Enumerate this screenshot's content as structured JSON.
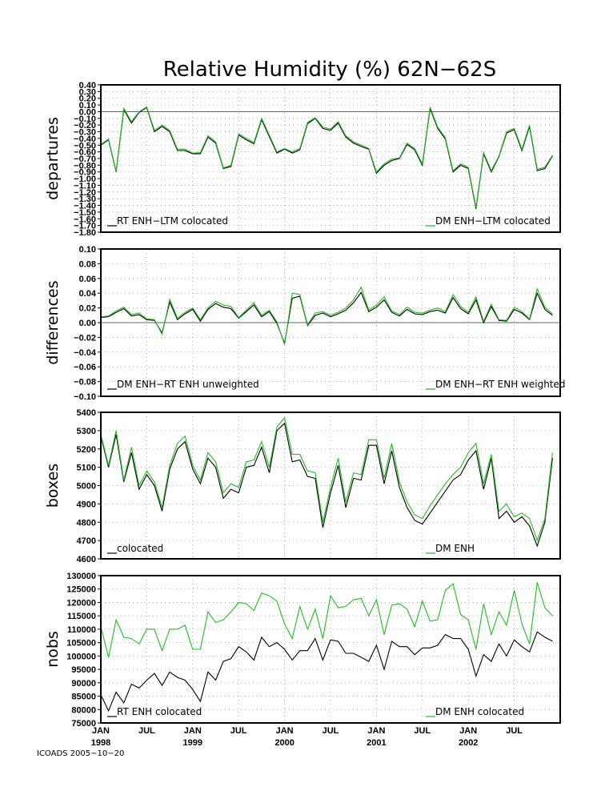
{
  "title": "Relative Humidity (%) 62N−62S",
  "footer": "ICOADS 2005−10−20",
  "colors": {
    "series_black": "#000000",
    "series_green": "#22bb22",
    "zero_line": "#666666",
    "grid": "#999999"
  },
  "x_axis": {
    "tick_labels": [
      "JAN",
      "JUL",
      "JAN",
      "JUL",
      "JAN",
      "JUL",
      "JAN",
      "JUL",
      "JAN",
      "JUL"
    ],
    "year_labels": [
      "1998",
      "1999",
      "2000",
      "2001",
      "2002"
    ]
  },
  "chart_data": [
    {
      "type": "line",
      "ylabel": "departures",
      "ylim": [
        -1.8,
        0.4
      ],
      "grid": true,
      "zero_line": true,
      "y_tick_labels": [
        "0.40",
        "0.30",
        "0.20",
        "0.10",
        "0.00",
        "−0.10",
        "−0.20",
        "−0.30",
        "−0.40",
        "−0.50",
        "−0.60",
        "−0.70",
        "−0.80",
        "−0.90",
        "−1.00",
        "−1.10",
        "−1.20",
        "−1.30",
        "−1.40",
        "−1.50",
        "−1.60",
        "−1.70",
        "−1.80"
      ],
      "x": [
        "1998-01",
        "1998-02",
        "1998-03",
        "1998-04",
        "1998-05",
        "1998-06",
        "1998-07",
        "1998-08",
        "1998-09",
        "1998-10",
        "1998-11",
        "1998-12",
        "1999-01",
        "1999-02",
        "1999-03",
        "1999-04",
        "1999-05",
        "1999-06",
        "1999-07",
        "1999-08",
        "1999-09",
        "1999-10",
        "1999-11",
        "1999-12",
        "2000-01",
        "2000-02",
        "2000-03",
        "2000-04",
        "2000-05",
        "2000-06",
        "2000-07",
        "2000-08",
        "2000-09",
        "2000-10",
        "2000-11",
        "2000-12",
        "2001-01",
        "2001-02",
        "2001-03",
        "2001-04",
        "2001-05",
        "2001-06",
        "2001-07",
        "2001-08",
        "2001-09",
        "2001-10",
        "2001-11",
        "2001-12",
        "2002-01",
        "2002-02",
        "2002-03",
        "2002-04",
        "2002-05",
        "2002-06",
        "2002-07",
        "2002-08",
        "2002-09",
        "2002-10",
        "2002-11",
        "2002-12"
      ],
      "series": [
        {
          "name": "RT ENH−LTM colocated",
          "color": "#000000",
          "values": [
            -0.5,
            -0.42,
            -0.9,
            0.03,
            -0.17,
            -0.01,
            0.06,
            -0.3,
            -0.22,
            -0.3,
            -0.58,
            -0.58,
            -0.63,
            -0.63,
            -0.38,
            -0.47,
            -0.85,
            -0.82,
            -0.35,
            -0.42,
            -0.48,
            -0.12,
            -0.37,
            -0.62,
            -0.56,
            -0.62,
            -0.57,
            -0.18,
            -0.1,
            -0.25,
            -0.28,
            -0.17,
            -0.38,
            -0.47,
            -0.52,
            -0.56,
            -0.92,
            -0.8,
            -0.73,
            -0.7,
            -0.49,
            -0.57,
            -0.8,
            0.05,
            -0.25,
            -0.41,
            -0.9,
            -0.8,
            -0.85,
            -1.45,
            -0.63,
            -0.9,
            -0.67,
            -0.32,
            -0.27,
            -0.58,
            -0.22,
            -0.88,
            -0.85,
            -0.66
          ]
        },
        {
          "name": "DM ENH−LTM colocated",
          "color": "#22bb22",
          "values": [
            -0.49,
            -0.41,
            -0.89,
            0.05,
            -0.15,
            0.0,
            0.07,
            -0.28,
            -0.2,
            -0.28,
            -0.56,
            -0.56,
            -0.62,
            -0.61,
            -0.36,
            -0.45,
            -0.84,
            -0.8,
            -0.33,
            -0.4,
            -0.46,
            -0.1,
            -0.35,
            -0.6,
            -0.55,
            -0.6,
            -0.55,
            -0.16,
            -0.09,
            -0.23,
            -0.26,
            -0.15,
            -0.36,
            -0.45,
            -0.5,
            -0.55,
            -0.9,
            -0.78,
            -0.71,
            -0.69,
            -0.47,
            -0.55,
            -0.78,
            0.07,
            -0.23,
            -0.39,
            -0.88,
            -0.78,
            -0.83,
            -1.43,
            -0.61,
            -0.88,
            -0.66,
            -0.3,
            -0.25,
            -0.56,
            -0.2,
            -0.86,
            -0.83,
            -0.65
          ]
        }
      ]
    },
    {
      "type": "line",
      "ylabel": "differences",
      "ylim": [
        -0.1,
        0.1
      ],
      "grid": true,
      "zero_line": true,
      "y_tick_labels": [
        "0.10",
        "0.08",
        "0.06",
        "0.04",
        "0.02",
        "0.00",
        "−0.02",
        "−0.04",
        "−0.06",
        "−0.08",
        "−0.10"
      ],
      "series": [
        {
          "name": "DM ENH−RT ENH unweighted",
          "color": "#000000",
          "values": [
            0.007,
            0.008,
            0.014,
            0.019,
            0.009,
            0.011,
            0.004,
            0.003,
            -0.014,
            0.028,
            0.004,
            0.012,
            0.018,
            0.002,
            0.018,
            0.026,
            0.021,
            0.019,
            0.006,
            0.015,
            0.024,
            0.008,
            0.015,
            -0.001,
            -0.028,
            0.033,
            0.036,
            -0.004,
            0.01,
            0.013,
            0.008,
            0.012,
            0.017,
            0.027,
            0.041,
            0.015,
            0.021,
            0.031,
            0.014,
            0.009,
            0.018,
            0.012,
            0.011,
            0.015,
            0.017,
            0.013,
            0.034,
            0.019,
            0.012,
            0.031,
            0.0,
            0.022,
            0.003,
            0.002,
            0.018,
            0.013,
            0.004,
            0.04,
            0.018,
            0.01
          ]
        },
        {
          "name": "DM ENH−RT ENH weighted",
          "color": "#22bb22",
          "values": [
            0.008,
            0.009,
            0.016,
            0.021,
            0.011,
            0.013,
            0.005,
            0.004,
            -0.016,
            0.032,
            0.006,
            0.014,
            0.02,
            0.004,
            0.02,
            0.029,
            0.024,
            0.022,
            0.007,
            0.017,
            0.027,
            0.01,
            0.017,
            0.001,
            -0.03,
            0.04,
            0.038,
            -0.003,
            0.013,
            0.015,
            0.01,
            0.014,
            0.02,
            0.031,
            0.048,
            0.017,
            0.024,
            0.035,
            0.016,
            0.011,
            0.021,
            0.014,
            0.013,
            0.017,
            0.02,
            0.015,
            0.038,
            0.022,
            0.014,
            0.035,
            0.002,
            0.025,
            0.004,
            0.003,
            0.021,
            0.015,
            0.005,
            0.046,
            0.021,
            0.012
          ]
        }
      ]
    },
    {
      "type": "line",
      "ylabel": "boxes",
      "ylim": [
        4600,
        5400
      ],
      "grid": true,
      "zero_line": false,
      "y_tick_labels": [
        "5400",
        "5300",
        "5200",
        "5100",
        "5000",
        "4900",
        "4800",
        "4700",
        "4600"
      ],
      "series": [
        {
          "name": "colocated",
          "color": "#000000",
          "values": [
            5270,
            5100,
            5280,
            5020,
            5180,
            4980,
            5060,
            5000,
            4860,
            5090,
            5200,
            5240,
            5090,
            5010,
            5150,
            5100,
            4930,
            4980,
            4960,
            5100,
            5110,
            5210,
            5070,
            5300,
            5340,
            5130,
            5140,
            5050,
            5040,
            4770,
            4960,
            5110,
            4880,
            5040,
            5030,
            5220,
            5220,
            5010,
            5190,
            4990,
            4880,
            4810,
            4790,
            4850,
            4910,
            4970,
            5030,
            5060,
            5140,
            5190,
            4980,
            5150,
            4820,
            4860,
            4800,
            4830,
            4780,
            4670,
            4800,
            5150
          ]
        },
        {
          "name": "DM ENH",
          "color": "#22bb22",
          "values": [
            5280,
            5110,
            5300,
            5030,
            5210,
            5000,
            5080,
            5020,
            4880,
            5110,
            5230,
            5270,
            5110,
            5030,
            5180,
            5130,
            4960,
            5010,
            4990,
            5130,
            5140,
            5240,
            5100,
            5320,
            5370,
            5170,
            5170,
            5080,
            5070,
            4800,
            4990,
            5150,
            4910,
            5070,
            5060,
            5250,
            5250,
            5040,
            5230,
            5020,
            4910,
            4840,
            4820,
            4890,
            4950,
            5010,
            5060,
            5100,
            5180,
            5230,
            5010,
            5170,
            4860,
            4900,
            4830,
            4850,
            4820,
            4700,
            4820,
            5180
          ]
        }
      ]
    },
    {
      "type": "line",
      "ylabel": "nobs",
      "ylim": [
        75000,
        130000
      ],
      "grid": true,
      "zero_line": false,
      "y_tick_labels": [
        "130000",
        "125000",
        "120000",
        "115000",
        "110000",
        "105000",
        "100000",
        "95000",
        "90000",
        "85000",
        "80000",
        "75000"
      ],
      "series": [
        {
          "name": "RT ENH colocated",
          "color": "#000000",
          "values": [
            85500,
            79500,
            86500,
            82500,
            89500,
            88000,
            91000,
            93500,
            89000,
            94000,
            92000,
            91000,
            87500,
            83000,
            94000,
            91000,
            98000,
            99000,
            103500,
            101500,
            98500,
            107000,
            103500,
            105000,
            102500,
            98500,
            102000,
            102000,
            106500,
            98500,
            106000,
            105500,
            101000,
            101000,
            99500,
            98000,
            104000,
            95000,
            105500,
            103500,
            103500,
            100500,
            103000,
            103000,
            104000,
            108000,
            106500,
            106500,
            102500,
            92500,
            100500,
            98000,
            104500,
            100000,
            106000,
            103500,
            101500,
            109000,
            107000,
            105500
          ]
        },
        {
          "name": "DM ENH colocated",
          "color": "#22bb22",
          "values": [
            111000,
            99500,
            113500,
            107000,
            106500,
            104500,
            110000,
            110000,
            102000,
            110000,
            110000,
            111500,
            102500,
            102500,
            116500,
            112500,
            113500,
            116500,
            120000,
            119500,
            117000,
            123500,
            122500,
            120500,
            112000,
            106500,
            118500,
            110000,
            117500,
            106500,
            122500,
            118000,
            118500,
            121000,
            121500,
            115000,
            121000,
            108000,
            119000,
            119500,
            117500,
            111000,
            120500,
            113000,
            113500,
            124500,
            127000,
            115500,
            113500,
            102500,
            119500,
            108000,
            116500,
            111500,
            124500,
            112000,
            104500,
            127500,
            118000,
            115000
          ]
        }
      ]
    }
  ]
}
